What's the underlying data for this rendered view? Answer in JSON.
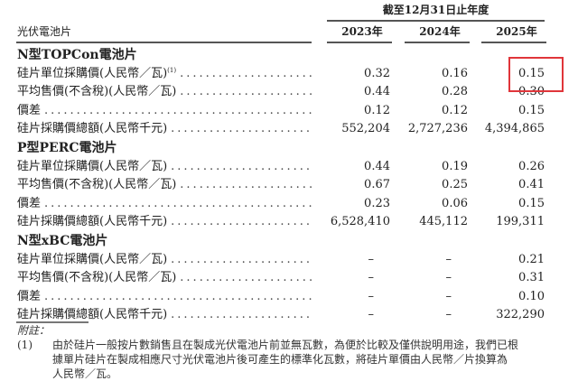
{
  "header": {
    "period": "截至12月31日止年度",
    "left": "光伏電池片",
    "years": [
      "2023年",
      "2024年",
      "2025年"
    ]
  },
  "sections": [
    {
      "title": "N型TOPCon電池片",
      "rows": [
        {
          "label": "硅片單位採購價(人民幣／瓦)",
          "sup": "(1)",
          "values": [
            "0.32",
            "0.16",
            "0.15"
          ]
        },
        {
          "label": "平均售價(不含稅)(人民幣／瓦)",
          "values": [
            "0.44",
            "0.28",
            "0.30"
          ]
        },
        {
          "label": "價差",
          "values": [
            "0.12",
            "0.12",
            "0.15"
          ]
        },
        {
          "label": "硅片採購價總額(人民幣千元)",
          "values": [
            "552,204",
            "2,727,236",
            "4,394,865"
          ]
        }
      ]
    },
    {
      "title": "P型PERC電池片",
      "rows": [
        {
          "label": "硅片單位採購價(人民幣／瓦)",
          "values": [
            "0.44",
            "0.19",
            "0.26"
          ]
        },
        {
          "label": "平均售價(不含稅)(人民幣／瓦)",
          "values": [
            "0.67",
            "0.25",
            "0.41"
          ]
        },
        {
          "label": "價差",
          "values": [
            "0.23",
            "0.06",
            "0.15"
          ]
        },
        {
          "label": "硅片採購價總額(人民幣千元)",
          "values": [
            "6,528,410",
            "445,112",
            "199,311"
          ]
        }
      ]
    },
    {
      "title": "N型xBC電池片",
      "rows": [
        {
          "label": "硅片單位採購價(人民幣／瓦)",
          "values": [
            "–",
            "–",
            "0.21"
          ]
        },
        {
          "label": "平均售價(不含稅)(人民幣／瓦)",
          "values": [
            "–",
            "–",
            "0.31"
          ]
        },
        {
          "label": "價差",
          "values": [
            "–",
            "–",
            "0.10"
          ]
        },
        {
          "label": "硅片採購價總額(人民幣千元)",
          "values": [
            "–",
            "–",
            "322,290"
          ]
        }
      ]
    }
  ],
  "notes": {
    "title": "附註：",
    "items": [
      {
        "marker": "(1)",
        "lines": [
          "由於硅片一般按片數銷售且在製成光伏電池片前並無瓦數，為便於比較及僅供說明用途，我們已根",
          "據單片硅片在製成相應尺寸光伏電池片後可產生的標準化瓦數，將硅片單價由人民幣／片換算為",
          "人民幣／瓦。"
        ]
      }
    ]
  },
  "highlight_color": "#e0353a"
}
